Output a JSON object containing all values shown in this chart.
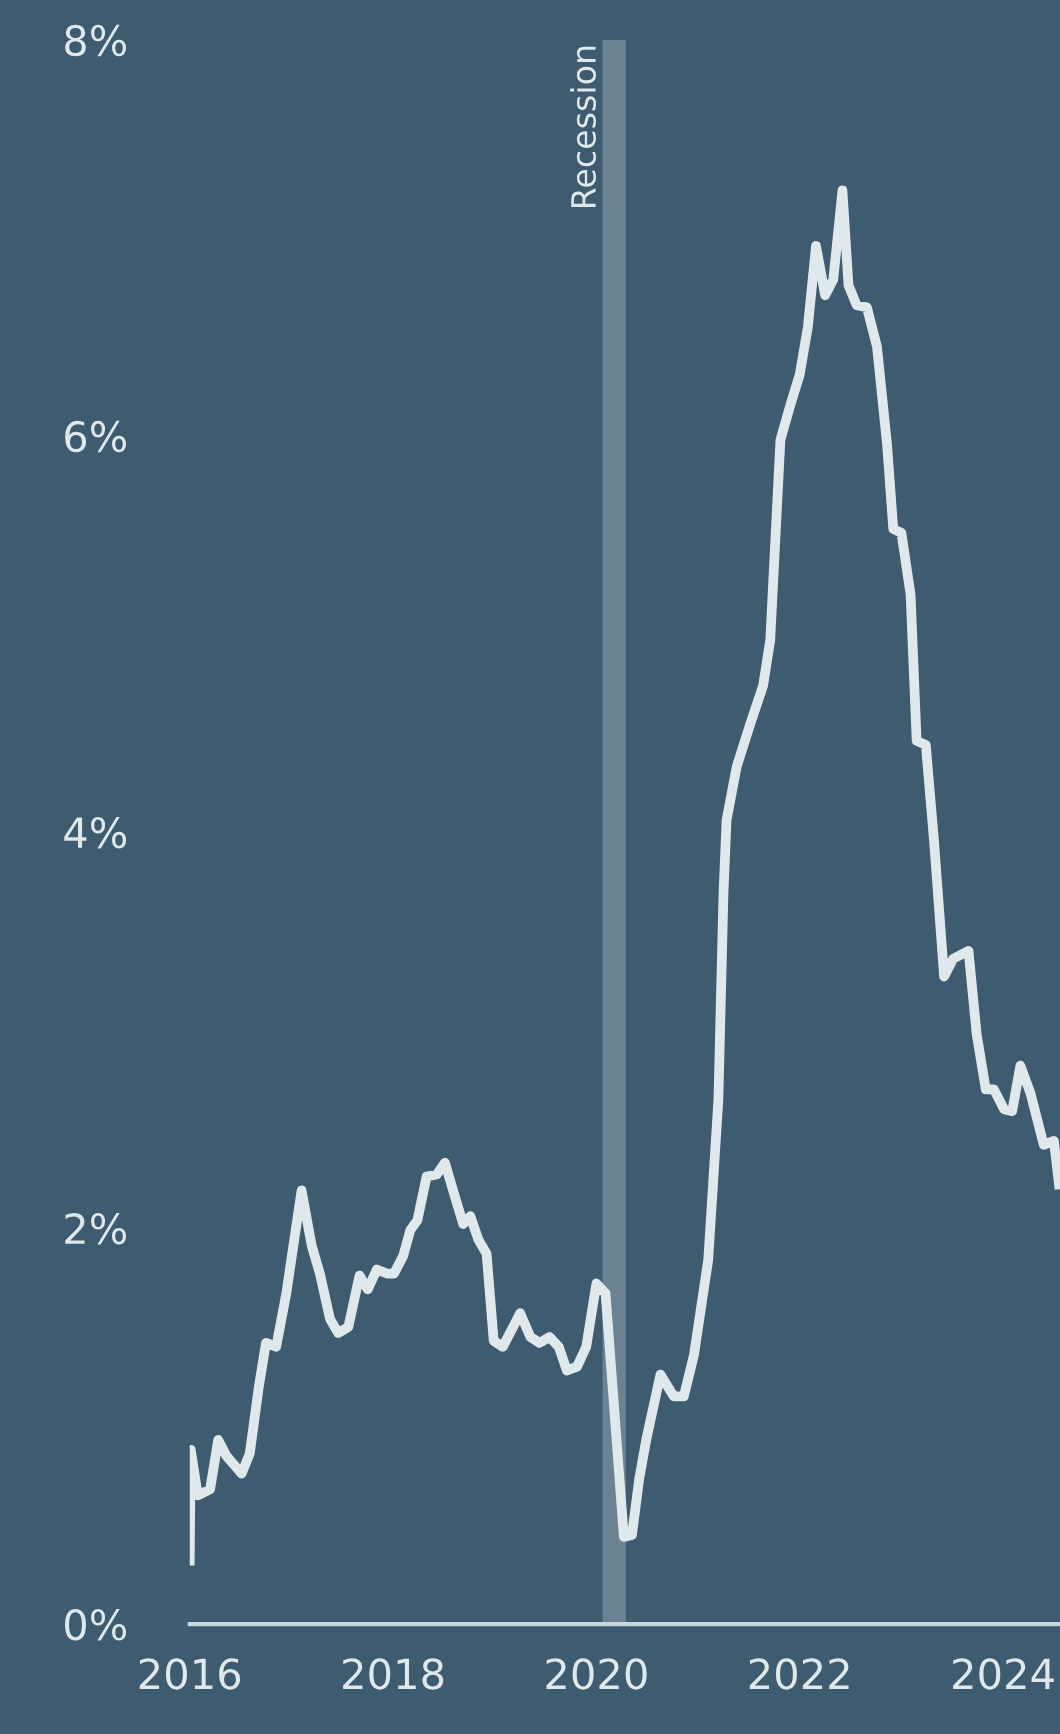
{
  "chart_data": {
    "type": "line",
    "x": [
      2016.0,
      2016.01,
      2016.08,
      2016.2,
      2016.28,
      2016.36,
      2016.51,
      2016.59,
      2016.68,
      2016.75,
      2016.85,
      2016.95,
      2017.1,
      2017.2,
      2017.28,
      2017.38,
      2017.46,
      2017.56,
      2017.67,
      2017.75,
      2017.84,
      2017.94,
      2018.01,
      2018.1,
      2018.17,
      2018.24,
      2018.33,
      2018.43,
      2018.51,
      2018.59,
      2018.69,
      2018.76,
      2018.84,
      2018.92,
      2018.99,
      2019.08,
      2019.25,
      2019.35,
      2019.44,
      2019.54,
      2019.63,
      2019.71,
      2019.81,
      2019.9,
      2020.0,
      2020.09,
      2020.27,
      2020.35,
      2020.42,
      2020.49,
      2020.63,
      2020.76,
      2020.86,
      2020.96,
      2021.1,
      2021.2,
      2021.25,
      2021.28,
      2021.38,
      2021.51,
      2021.64,
      2021.71,
      2021.81,
      2021.91,
      2022.0,
      2022.08,
      2022.16,
      2022.25,
      2022.33,
      2022.42,
      2022.48,
      2022.56,
      2022.66,
      2022.76,
      2022.86,
      2022.92,
      2023.0,
      2023.09,
      2023.15,
      2023.24,
      2023.32,
      2023.42,
      2023.51,
      2023.66,
      2023.74,
      2023.83,
      2023.91,
      2024.01,
      2024.09,
      2024.17,
      2024.27,
      2024.4,
      2024.5,
      2024.55
    ],
    "series": [
      {
        "color": "#dfe8eb",
        "values": [
          0.32,
          0.88,
          0.65,
          0.68,
          0.93,
          0.85,
          0.76,
          0.86,
          1.2,
          1.42,
          1.4,
          1.67,
          2.19,
          1.91,
          1.77,
          1.54,
          1.47,
          1.5,
          1.76,
          1.69,
          1.79,
          1.77,
          1.77,
          1.86,
          1.99,
          2.04,
          2.26,
          2.27,
          2.33,
          2.19,
          2.02,
          2.06,
          1.94,
          1.87,
          1.43,
          1.4,
          1.57,
          1.45,
          1.42,
          1.45,
          1.4,
          1.28,
          1.3,
          1.4,
          1.72,
          1.67,
          0.44,
          0.45,
          0.73,
          0.93,
          1.26,
          1.15,
          1.15,
          1.36,
          1.84,
          2.65,
          3.69,
          4.06,
          4.33,
          4.54,
          4.74,
          4.97,
          5.98,
          6.16,
          6.31,
          6.55,
          6.96,
          6.71,
          6.79,
          7.24,
          6.76,
          6.66,
          6.65,
          6.45,
          5.95,
          5.53,
          5.51,
          5.2,
          4.46,
          4.44,
          3.96,
          3.27,
          3.36,
          3.4,
          2.98,
          2.7,
          2.7,
          2.6,
          2.59,
          2.82,
          2.68,
          2.42,
          2.44,
          2.22
        ]
      }
    ],
    "xlim": [
      2016.0,
      2024.56
    ],
    "xticks": [
      2016,
      2018,
      2020,
      2022,
      2024
    ],
    "ylim": [
      0,
      8
    ],
    "yticks": [
      {
        "value": 0,
        "label": "0%"
      },
      {
        "value": 2,
        "label": "2%"
      },
      {
        "value": 4,
        "label": "4%"
      },
      {
        "value": 6,
        "label": "6%"
      },
      {
        "value": 8,
        "label": "8%"
      }
    ],
    "bands": [
      {
        "axis": "x",
        "from": 2020.06,
        "to": 2020.29,
        "label": "Recession",
        "color": "#6b8293"
      }
    ],
    "marker": "none",
    "line_style": "solid"
  }
}
